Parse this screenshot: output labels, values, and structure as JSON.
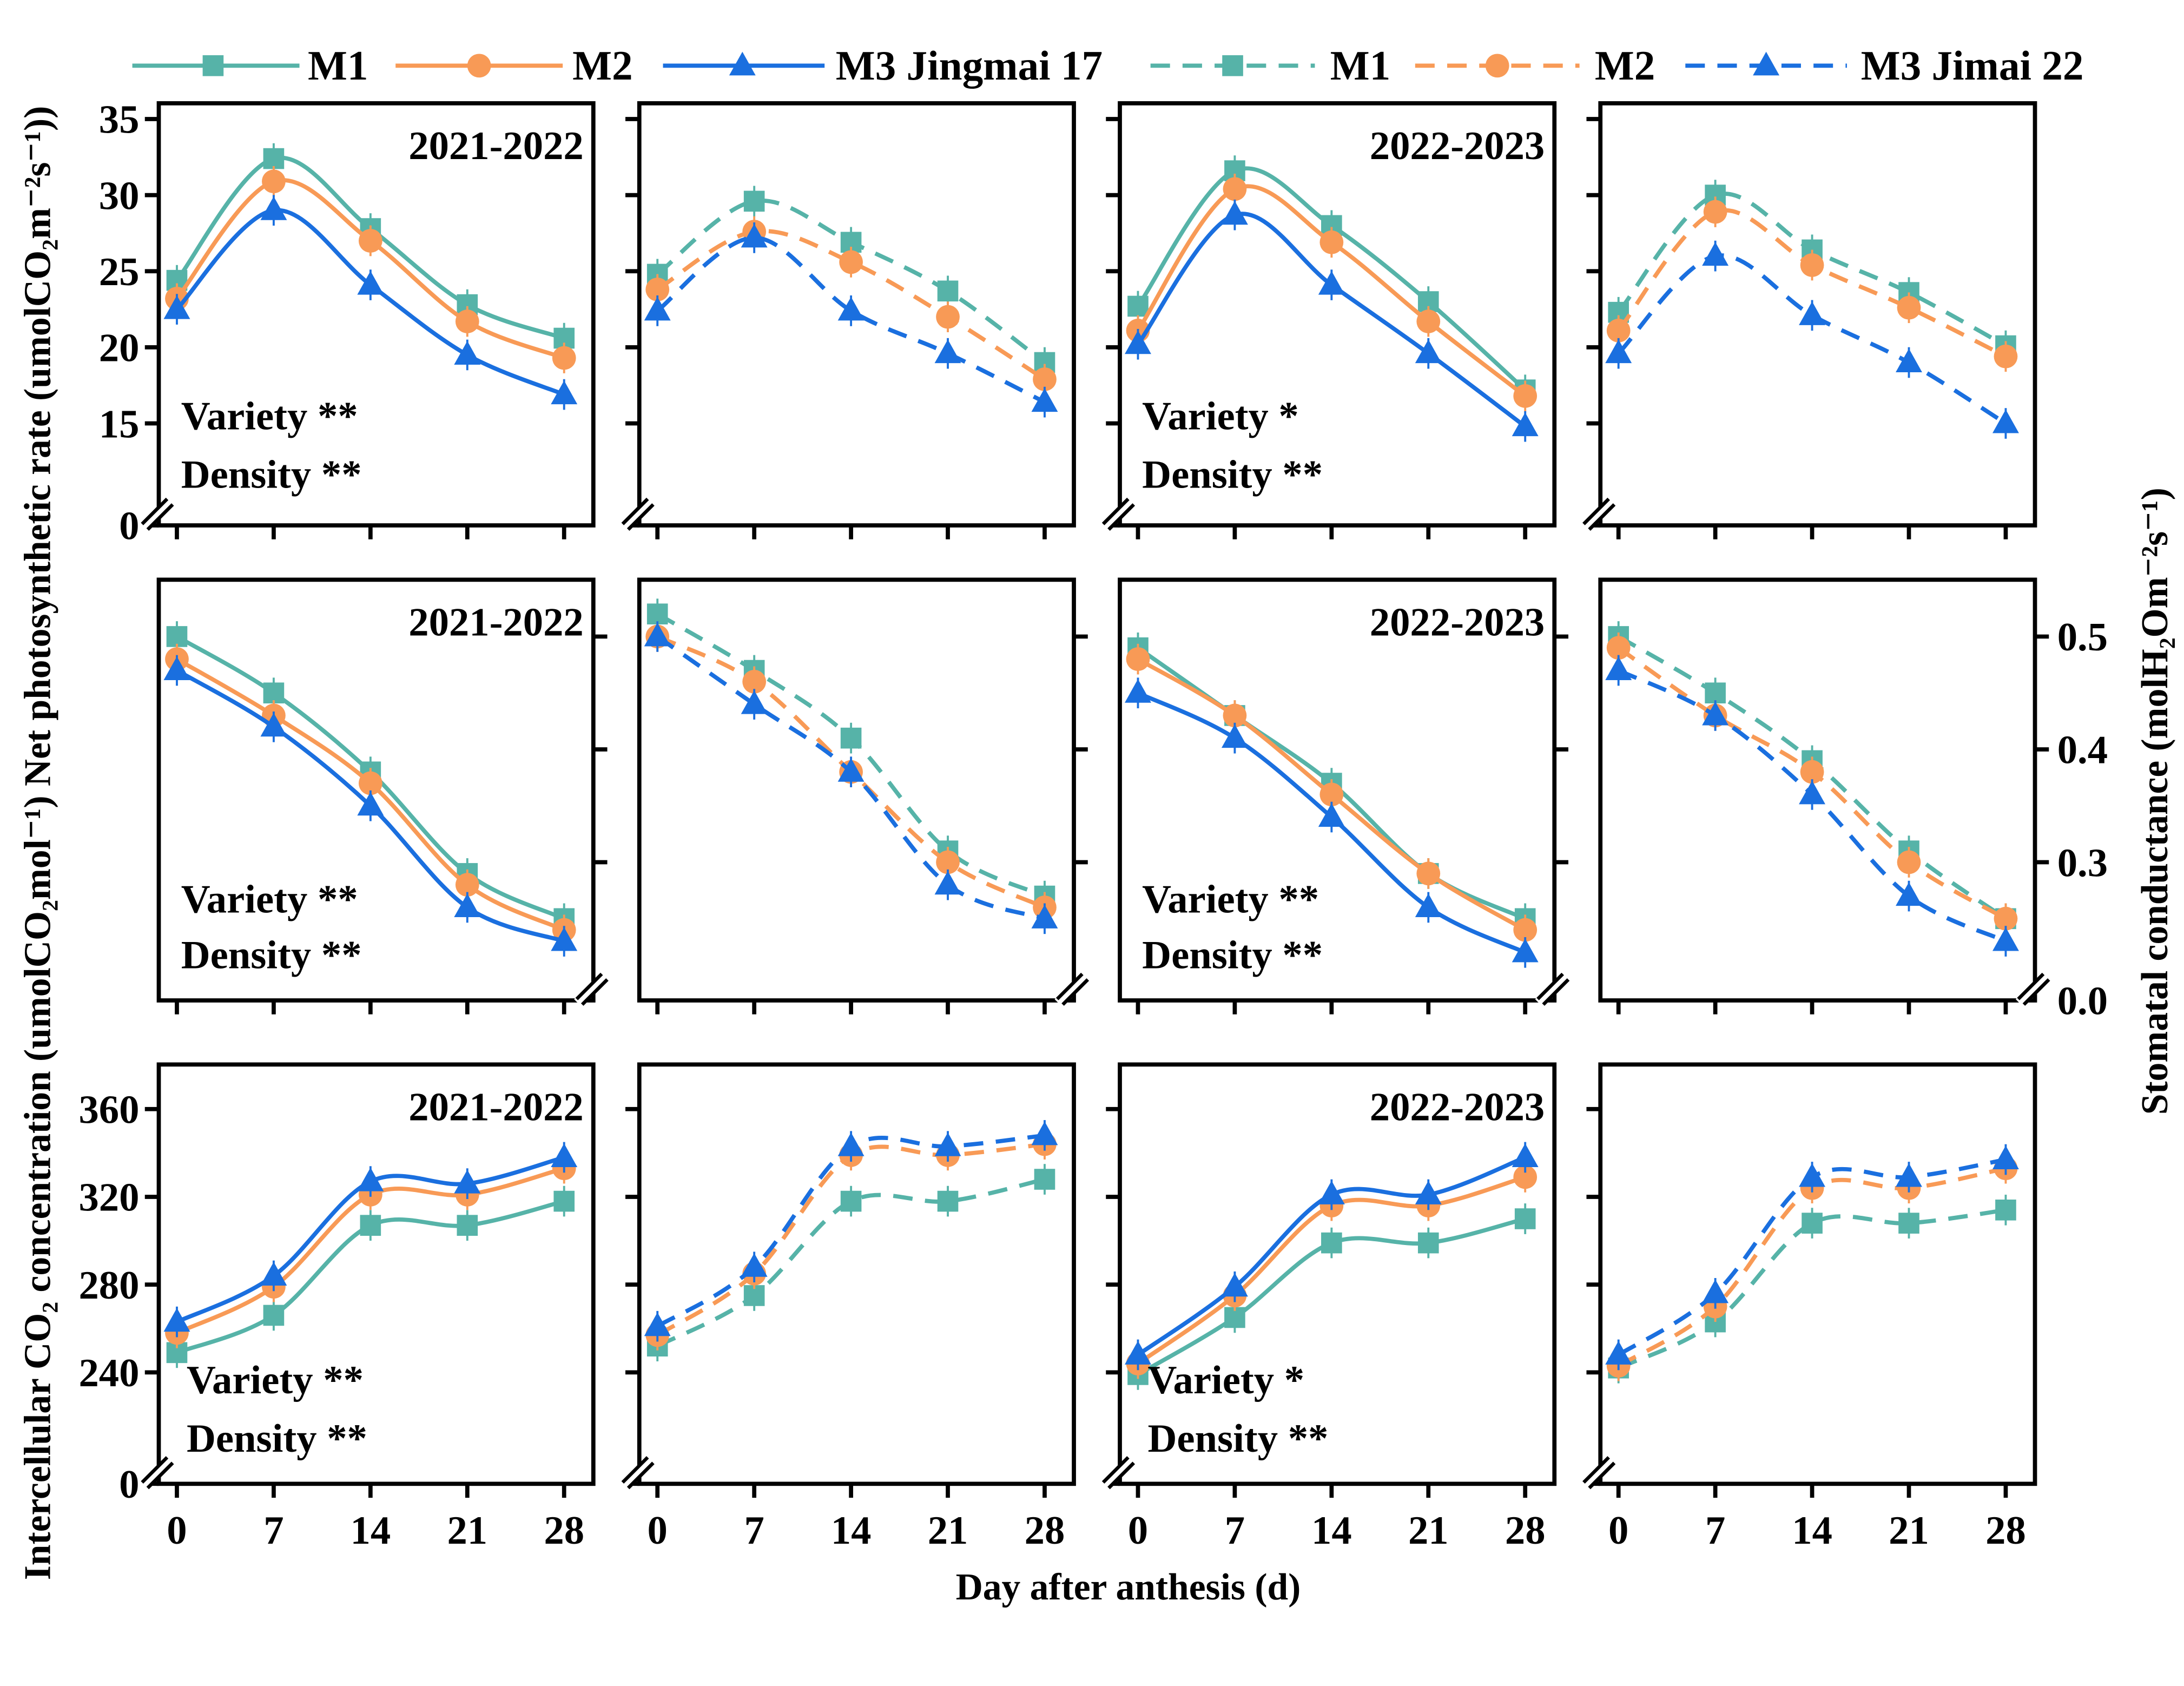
{
  "legend": {
    "items": [
      {
        "label": "M1",
        "marker": "square",
        "color": "#56B3A8",
        "style": "solid"
      },
      {
        "label": "M2",
        "marker": "circle",
        "color": "#F89A56",
        "style": "solid"
      },
      {
        "label": "M3 Jingmai 17",
        "marker": "triangle",
        "color": "#1A6FDF",
        "style": "solid"
      },
      {
        "label": "M1",
        "marker": "square",
        "color": "#56B3A8",
        "style": "dashed"
      },
      {
        "label": "M2",
        "marker": "circle",
        "color": "#F89A56",
        "style": "dashed"
      },
      {
        "label": "M3 Jimai 22",
        "marker": "triangle",
        "color": "#1A6FDF",
        "style": "dashed"
      }
    ]
  },
  "axes": {
    "left_title_lower": "Intercellular CO₂ concentration (umolCO₂mol⁻¹)",
    "left_title_upper": "Net photosynthetic rate (umolCO₂m⁻²s⁻¹))",
    "right_title": "Stomatal conductance (molH₂Om⁻²s⁻¹)",
    "x_title": "Day after anthesis (d)"
  },
  "chart_data": {
    "type": "line",
    "x": [
      0,
      7,
      14,
      21,
      28
    ],
    "x_tick_labels": [
      "0",
      "7",
      "14",
      "21",
      "28"
    ],
    "xlabel": "Day after anthesis (d)",
    "colors": {
      "M1": "#56B3A8",
      "M2": "#F89A56",
      "M3": "#1A6FDF"
    },
    "rows": [
      {
        "ylabel": "Net photosynthetic rate (umolCO₂m⁻²s⁻¹)",
        "axis_side": "left",
        "axis_break": true,
        "ticks": [
          "0",
          "15",
          "20",
          "25",
          "30",
          "35"
        ],
        "panels": [
          {
            "year": "2021-2022",
            "line_style": "solid",
            "stats": [
              "Variety **",
              "Density **"
            ],
            "series": [
              {
                "name": "M1",
                "values": [
                  24.4,
                  32.4,
                  27.8,
                  22.8,
                  20.6
                ]
              },
              {
                "name": "M2",
                "values": [
                  23.2,
                  30.9,
                  27.0,
                  21.7,
                  19.3
                ]
              },
              {
                "name": "M3",
                "values": [
                  22.5,
                  29.0,
                  24.1,
                  19.5,
                  16.9
                ]
              }
            ]
          },
          {
            "year": "",
            "line_style": "dashed",
            "stats": [],
            "series": [
              {
                "name": "M1",
                "values": [
                  24.8,
                  29.6,
                  26.9,
                  23.7,
                  19.0
                ]
              },
              {
                "name": "M2",
                "values": [
                  23.8,
                  27.6,
                  25.6,
                  22.0,
                  17.9
                ]
              },
              {
                "name": "M3",
                "values": [
                  22.4,
                  27.2,
                  22.4,
                  19.6,
                  16.4
                ]
              }
            ]
          },
          {
            "year": "2022-2023",
            "line_style": "solid",
            "stats": [
              "Variety *",
              "Density **"
            ],
            "series": [
              {
                "name": "M1",
                "values": [
                  22.7,
                  31.6,
                  28.0,
                  23.0,
                  17.2
                ]
              },
              {
                "name": "M2",
                "values": [
                  21.1,
                  30.4,
                  26.9,
                  21.7,
                  16.8
                ]
              },
              {
                "name": "M3",
                "values": [
                  20.2,
                  28.7,
                  24.1,
                  19.6,
                  14.8
                ]
              }
            ]
          },
          {
            "year": "",
            "line_style": "dashed",
            "stats": [],
            "series": [
              {
                "name": "M1",
                "values": [
                  22.3,
                  30.0,
                  26.4,
                  23.6,
                  20.1
                ]
              },
              {
                "name": "M2",
                "values": [
                  21.1,
                  28.9,
                  25.4,
                  22.6,
                  19.4
                ]
              },
              {
                "name": "M3",
                "values": [
                  19.6,
                  26.0,
                  22.1,
                  19.0,
                  15.0
                ]
              }
            ]
          }
        ]
      },
      {
        "ylabel": "Stomatal conductance (molH₂Om⁻²s⁻¹)",
        "axis_side": "right",
        "axis_break": true,
        "ticks": [
          "0.0",
          "0.3",
          "0.4",
          "0.5"
        ],
        "panels": [
          {
            "year": "2021-2022",
            "line_style": "solid",
            "stats": [
              "Variety **",
              "Density **"
            ],
            "series": [
              {
                "name": "M1",
                "values": [
                  0.5,
                  0.45,
                  0.38,
                  0.29,
                  0.25
                ]
              },
              {
                "name": "M2",
                "values": [
                  0.48,
                  0.43,
                  0.37,
                  0.28,
                  0.24
                ]
              },
              {
                "name": "M3",
                "values": [
                  0.47,
                  0.42,
                  0.35,
                  0.26,
                  0.23
                ]
              }
            ]
          },
          {
            "year": "",
            "line_style": "dashed",
            "stats": [],
            "series": [
              {
                "name": "M1",
                "values": [
                  0.52,
                  0.47,
                  0.41,
                  0.31,
                  0.27
                ]
              },
              {
                "name": "M2",
                "values": [
                  0.5,
                  0.46,
                  0.38,
                  0.3,
                  0.26
                ]
              },
              {
                "name": "M3",
                "values": [
                  0.5,
                  0.44,
                  0.38,
                  0.28,
                  0.25
                ]
              }
            ]
          },
          {
            "year": "2022-2023",
            "line_style": "solid",
            "stats": [
              "Variety **",
              "Density **"
            ],
            "series": [
              {
                "name": "M1",
                "values": [
                  0.49,
                  0.43,
                  0.37,
                  0.29,
                  0.25
                ]
              },
              {
                "name": "M2",
                "values": [
                  0.48,
                  0.43,
                  0.36,
                  0.29,
                  0.24
                ]
              },
              {
                "name": "M3",
                "values": [
                  0.45,
                  0.41,
                  0.34,
                  0.26,
                  0.22
                ]
              }
            ]
          },
          {
            "year": "",
            "line_style": "dashed",
            "stats": [],
            "series": [
              {
                "name": "M1",
                "values": [
                  0.5,
                  0.45,
                  0.39,
                  0.31,
                  0.25
                ]
              },
              {
                "name": "M2",
                "values": [
                  0.49,
                  0.43,
                  0.38,
                  0.3,
                  0.25
                ]
              },
              {
                "name": "M3",
                "values": [
                  0.47,
                  0.43,
                  0.36,
                  0.27,
                  0.23
                ]
              }
            ]
          }
        ]
      },
      {
        "ylabel": "Intercellular CO₂ concentration (umolCO₂mol⁻¹)",
        "axis_side": "left",
        "axis_break": true,
        "ticks": [
          "0",
          "240",
          "280",
          "320",
          "360"
        ],
        "panels": [
          {
            "year": "2021-2022",
            "line_style": "solid",
            "stats": [
              "Variety **",
              "Density **"
            ],
            "series": [
              {
                "name": "M1",
                "values": [
                  249,
                  266,
                  307,
                  307,
                  318
                ]
              },
              {
                "name": "M2",
                "values": [
                  258,
                  279,
                  321,
                  321,
                  333
                ]
              },
              {
                "name": "M3",
                "values": [
                  263,
                  284,
                  327,
                  326,
                  338
                ]
              }
            ]
          },
          {
            "year": "",
            "line_style": "dashed",
            "stats": [],
            "series": [
              {
                "name": "M1",
                "values": [
                  252,
                  275,
                  318,
                  318,
                  328
                ]
              },
              {
                "name": "M2",
                "values": [
                  257,
                  285,
                  339,
                  339,
                  344
                ]
              },
              {
                "name": "M3",
                "values": [
                  261,
                  288,
                  343,
                  343,
                  348
                ]
              }
            ]
          },
          {
            "year": "2022-2023",
            "line_style": "solid",
            "stats": [
              "Variety *",
              "Density **"
            ],
            "series": [
              {
                "name": "M1",
                "values": [
                  239,
                  265,
                  299,
                  299,
                  310
                ]
              },
              {
                "name": "M2",
                "values": [
                  244,
                  275,
                  316,
                  316,
                  329
                ]
              },
              {
                "name": "M3",
                "values": [
                  248,
                  279,
                  321,
                  321,
                  338
                ]
              }
            ]
          },
          {
            "year": "",
            "line_style": "dashed",
            "stats": [],
            "series": [
              {
                "name": "M1",
                "values": [
                  242,
                  263,
                  308,
                  308,
                  314
                ]
              },
              {
                "name": "M2",
                "values": [
                  243,
                  270,
                  324,
                  324,
                  333
                ]
              },
              {
                "name": "M3",
                "values": [
                  248,
                  276,
                  329,
                  329,
                  337
                ]
              }
            ]
          }
        ]
      }
    ]
  }
}
